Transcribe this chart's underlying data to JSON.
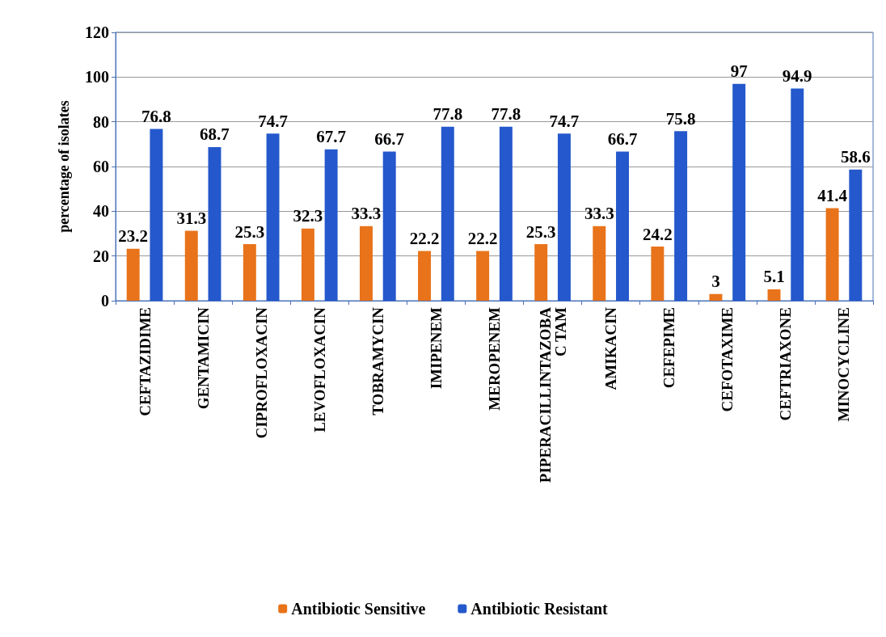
{
  "chart_data": {
    "type": "bar",
    "ylabel": "percentage of isolates",
    "categories": [
      "CEFTAZIDIME",
      "GENTAMICIN",
      "CIPROFLOXACIN",
      "LEVOFLOXACIN",
      "TOBRAMYCIN",
      "IMIPENEM",
      "MEROPENEM",
      "PIPERACILLINTAZOBAC TAM",
      "AMIKACIN",
      "CEFEPIME",
      "CEFOTAXIME",
      "CEFTRIAXONE",
      "MINOCYCLINE"
    ],
    "series": [
      {
        "name": "Antibiotic Sensitive",
        "color": "#e8731a",
        "values": [
          23.2,
          31.3,
          25.3,
          32.3,
          33.3,
          22.2,
          22.2,
          25.3,
          33.3,
          24.2,
          3,
          5.1,
          41.4
        ]
      },
      {
        "name": "Antibiotic Resistant",
        "color": "#2458cc",
        "values": [
          76.8,
          68.7,
          74.7,
          67.7,
          66.7,
          77.8,
          77.8,
          74.7,
          66.7,
          75.8,
          97,
          94.9,
          58.6
        ]
      }
    ],
    "ylim": [
      0,
      120
    ],
    "yticks": [
      0,
      20,
      40,
      60,
      80,
      100,
      120
    ],
    "grid": "y",
    "legend": "bottom",
    "data_labels": true
  }
}
